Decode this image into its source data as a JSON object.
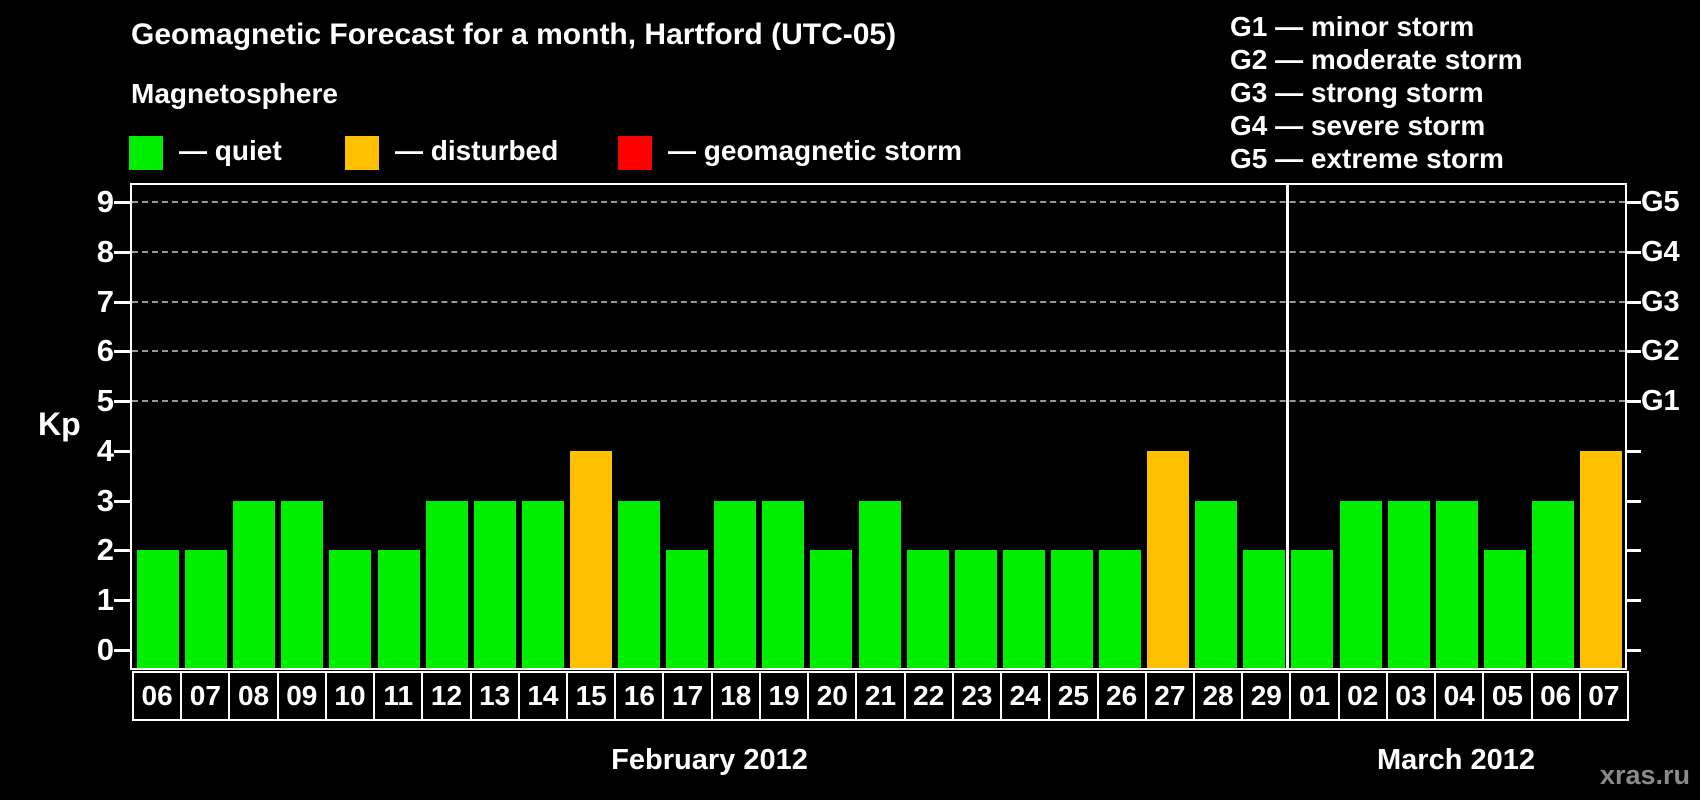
{
  "header": {
    "title": "Geomagnetic Forecast for a month, Hartford (UTC-05)",
    "subtitle": "Magnetosphere"
  },
  "legend": {
    "items": [
      {
        "name": "quiet",
        "label": "— quiet",
        "color": "#00ee00"
      },
      {
        "name": "disturbed",
        "label": "— disturbed",
        "color": "#ffc000"
      },
      {
        "name": "storm",
        "label": "— geomagnetic storm",
        "color": "#ff0000"
      }
    ]
  },
  "g_legend": {
    "lines": [
      "G1 — minor storm",
      "G2 — moderate storm",
      "G3 — strong storm",
      "G4 — severe storm",
      "G5 — extreme storm"
    ]
  },
  "axes": {
    "y_label": "Kp",
    "y_ticks": [
      0,
      1,
      2,
      3,
      4,
      5,
      6,
      7,
      8,
      9
    ],
    "right_ticks": [
      {
        "label": "G1",
        "kp": 5
      },
      {
        "label": "G2",
        "kp": 6
      },
      {
        "label": "G3",
        "kp": 7
      },
      {
        "label": "G4",
        "kp": 8
      },
      {
        "label": "G5",
        "kp": 9
      }
    ],
    "month_labels": [
      "February 2012",
      "March 2012"
    ]
  },
  "footer": {
    "watermark": "xras.ru"
  },
  "chart_data": {
    "type": "bar",
    "title": "Geomagnetic Forecast for a month, Hartford (UTC-05)",
    "subtitle": "Magnetosphere",
    "xlabel": "",
    "ylabel": "Kp",
    "ylim": [
      0,
      9
    ],
    "grid": "dashed horizontal gridlines at Kp 5,6,7,8,9 (G1–G5)",
    "legend_position": "top",
    "categories": [
      "06",
      "07",
      "08",
      "09",
      "10",
      "11",
      "12",
      "13",
      "14",
      "15",
      "16",
      "17",
      "18",
      "19",
      "20",
      "21",
      "22",
      "23",
      "24",
      "25",
      "26",
      "27",
      "28",
      "29",
      "01",
      "02",
      "03",
      "04",
      "05",
      "06",
      "07"
    ],
    "series": [
      {
        "name": "Kp forecast",
        "values": [
          2,
          2,
          3,
          3,
          2,
          2,
          3,
          3,
          3,
          4,
          3,
          2,
          3,
          3,
          2,
          3,
          2,
          2,
          2,
          2,
          2,
          4,
          3,
          2,
          2,
          3,
          3,
          3,
          2,
          3,
          4
        ]
      }
    ],
    "statuses": [
      "quiet",
      "quiet",
      "quiet",
      "quiet",
      "quiet",
      "quiet",
      "quiet",
      "quiet",
      "quiet",
      "disturbed",
      "quiet",
      "quiet",
      "quiet",
      "quiet",
      "quiet",
      "quiet",
      "quiet",
      "quiet",
      "quiet",
      "quiet",
      "quiet",
      "disturbed",
      "quiet",
      "quiet",
      "quiet",
      "quiet",
      "quiet",
      "quiet",
      "quiet",
      "quiet",
      "disturbed"
    ],
    "months": [
      {
        "label": "February 2012",
        "days": 24
      },
      {
        "label": "March 2012",
        "days": 7
      }
    ],
    "colors": {
      "quiet": "#00ee00",
      "disturbed": "#ffc000",
      "storm": "#ff0000"
    }
  }
}
